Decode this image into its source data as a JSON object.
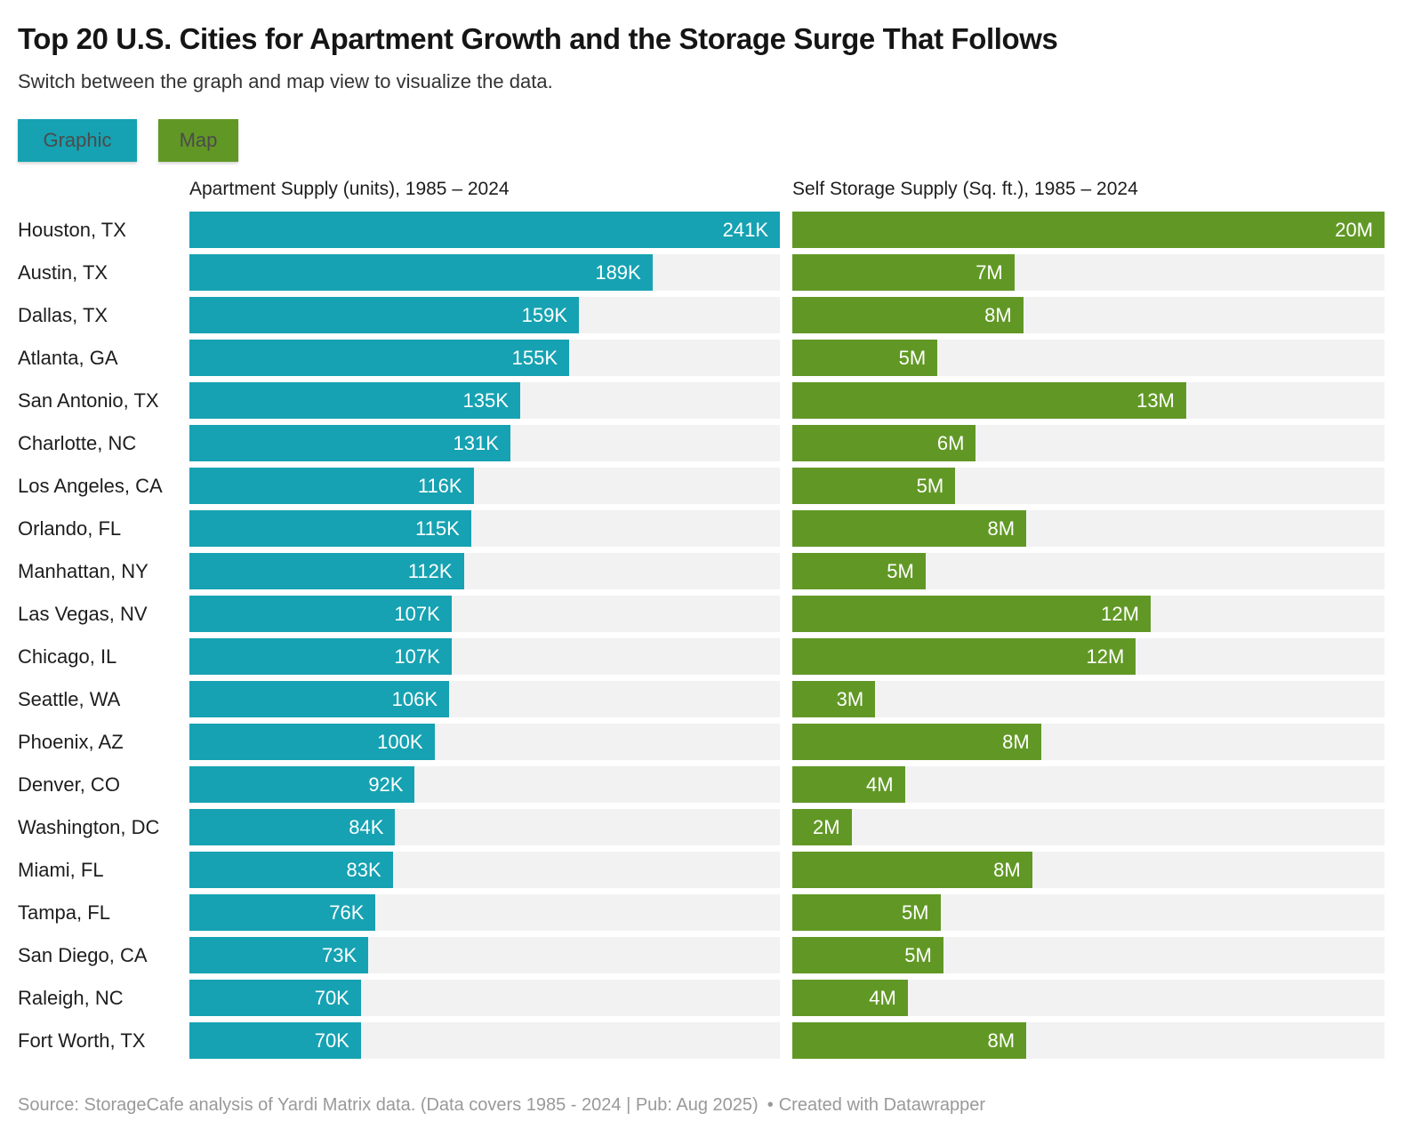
{
  "header": {
    "title": "Top 20 U.S. Cities for Apartment Growth and the Storage Surge That Follows",
    "subtitle": "Switch between the graph and map view to visualize the data."
  },
  "tabs": [
    {
      "label": "Graphic",
      "color": "#16a2b2",
      "active": true
    },
    {
      "label": "Map",
      "color": "#619825",
      "active": false
    }
  ],
  "chart_data": {
    "type": "bar",
    "orientation": "horizontal",
    "layout": "paired bar columns with full-width light-gray tracks, value labels inside bar ends",
    "track_color": "#f2f2f2",
    "categories": [
      "Houston, TX",
      "Austin, TX",
      "Dallas, TX",
      "Atlanta, GA",
      "San Antonio, TX",
      "Charlotte, NC",
      "Los Angeles, CA",
      "Orlando, FL",
      "Manhattan, NY",
      "Las Vegas, NV",
      "Chicago, IL",
      "Seattle, WA",
      "Phoenix, AZ",
      "Denver, CO",
      "Washington, DC",
      "Miami, FL",
      "Tampa, FL",
      "San Diego, CA",
      "Raleigh, NC",
      "Fort Worth, TX"
    ],
    "series": [
      {
        "name": "Apartment Supply (units), 1985 – 2024",
        "unit": "thousand units",
        "color": "#16a2b2",
        "axis_min": 0,
        "axis_max": 241,
        "values": [
          241,
          189,
          159,
          155,
          135,
          131,
          116,
          115,
          112,
          107,
          107,
          106,
          100,
          92,
          84,
          83,
          76,
          73,
          70,
          70
        ],
        "labels": [
          "241K",
          "189K",
          "159K",
          "155K",
          "135K",
          "131K",
          "116K",
          "115K",
          "112K",
          "107K",
          "107K",
          "106K",
          "100K",
          "92K",
          "84K",
          "83K",
          "76K",
          "73K",
          "70K",
          "70K"
        ]
      },
      {
        "name": "Self Storage Supply (Sq. ft.), 1985 – 2024",
        "unit": "million sq. ft.",
        "color": "#619825",
        "axis_min": 0,
        "axis_max": 20,
        "values": [
          20.0,
          7.5,
          7.8,
          4.9,
          13.3,
          6.2,
          5.5,
          7.9,
          4.5,
          12.1,
          11.6,
          2.8,
          8.4,
          3.8,
          2.0,
          8.1,
          5.0,
          5.1,
          3.9,
          7.9
        ],
        "labels": [
          "20M",
          "7M",
          "8M",
          "5M",
          "13M",
          "6M",
          "5M",
          "8M",
          "5M",
          "12M",
          "12M",
          "3M",
          "8M",
          "4M",
          "2M",
          "8M",
          "5M",
          "5M",
          "4M",
          "8M"
        ]
      }
    ]
  },
  "footer": {
    "source": "Source: StorageCafe analysis of Yardi Matrix data. (Data covers 1985 - 2024 | Pub: Aug 2025)",
    "bullet": "•",
    "credit": "Created with Datawrapper"
  }
}
